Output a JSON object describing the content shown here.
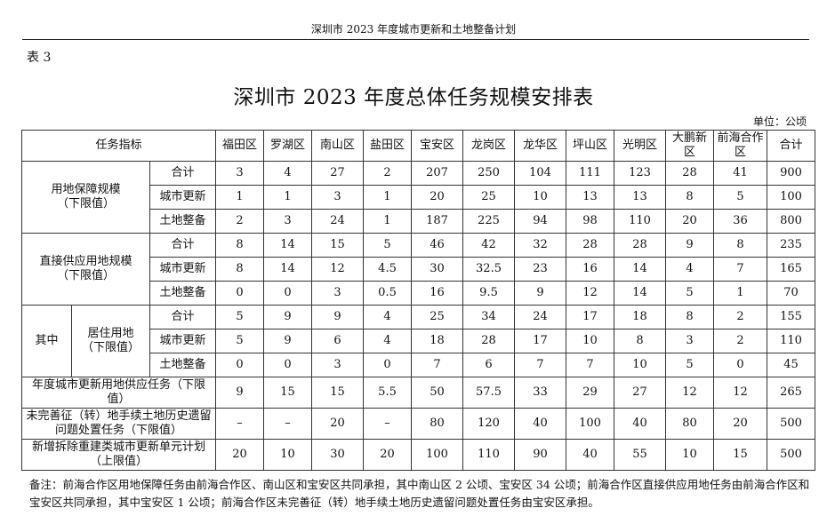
{
  "running_head": "深圳市 2023 年度城市更新和土地整备计划",
  "table_no": "表 3",
  "title": "深圳市 2023 年度总体任务规模安排表",
  "unit": "单位：公顷",
  "header": {
    "indicator": "任务指标",
    "districts": [
      "福田区",
      "罗湖区",
      "南山区",
      "盐田区",
      "宝安区",
      "龙岗区",
      "龙华区",
      "坪山区",
      "光明区",
      "大鹏新区",
      "前海合作区"
    ],
    "total": "合计"
  },
  "groups": {
    "g1": {
      "label": "用地保障规模\n（下限值）",
      "rows": [
        {
          "sub": "合计",
          "values": [
            "3",
            "4",
            "27",
            "2",
            "207",
            "250",
            "104",
            "111",
            "123",
            "28",
            "41"
          ],
          "total": "900"
        },
        {
          "sub": "城市更新",
          "values": [
            "1",
            "1",
            "3",
            "1",
            "20",
            "25",
            "10",
            "13",
            "13",
            "8",
            "5"
          ],
          "total": "100"
        },
        {
          "sub": "土地整备",
          "values": [
            "2",
            "3",
            "24",
            "1",
            "187",
            "225",
            "94",
            "98",
            "110",
            "20",
            "36"
          ],
          "total": "800"
        }
      ]
    },
    "g2": {
      "label": "直接供应用地规模\n（下限值）",
      "rows": [
        {
          "sub": "合计",
          "values": [
            "8",
            "14",
            "15",
            "5",
            "46",
            "42",
            "32",
            "28",
            "28",
            "9",
            "8"
          ],
          "total": "235"
        },
        {
          "sub": "城市更新",
          "values": [
            "8",
            "14",
            "12",
            "4.5",
            "30",
            "32.5",
            "23",
            "16",
            "14",
            "4",
            "7"
          ],
          "total": "165"
        },
        {
          "sub": "土地整备",
          "values": [
            "0",
            "0",
            "3",
            "0.5",
            "16",
            "9.5",
            "9",
            "12",
            "14",
            "5",
            "1"
          ],
          "total": "70"
        }
      ]
    },
    "g3": {
      "outer": "其中",
      "label": "居住用地\n（下限值）",
      "rows": [
        {
          "sub": "合计",
          "values": [
            "5",
            "9",
            "9",
            "4",
            "25",
            "34",
            "24",
            "17",
            "18",
            "8",
            "2"
          ],
          "total": "155"
        },
        {
          "sub": "城市更新",
          "values": [
            "5",
            "9",
            "6",
            "4",
            "18",
            "28",
            "17",
            "10",
            "8",
            "3",
            "2"
          ],
          "total": "110"
        },
        {
          "sub": "土地整备",
          "values": [
            "0",
            "0",
            "3",
            "0",
            "7",
            "6",
            "7",
            "7",
            "10",
            "5",
            "0"
          ],
          "total": "45"
        }
      ]
    }
  },
  "single_rows": {
    "supply": {
      "label": "年度城市更新用地供应任务（下限值）",
      "values": [
        "9",
        "15",
        "15",
        "5.5",
        "50",
        "57.5",
        "33",
        "29",
        "27",
        "12",
        "12"
      ],
      "total": "265"
    },
    "legacy": {
      "label": "未完善征（转）地手续土地历史遗留问题处置任务（下限值）",
      "values": [
        "–",
        "–",
        "20",
        "–",
        "80",
        "120",
        "40",
        "100",
        "40",
        "80",
        "20"
      ],
      "total": "500"
    },
    "newunit": {
      "label": "新增拆除重建类城市更新单元计划（上限值）",
      "values": [
        "20",
        "10",
        "30",
        "20",
        "100",
        "110",
        "90",
        "40",
        "55",
        "10",
        "15"
      ],
      "total": "500"
    }
  },
  "footnote": "备注：前海合作区用地保障任务由前海合作区、南山区和宝安区共同承担，其中南山区 2 公顷、宝安区 34 公顷；前海合作区直接供应用地任务由前海合作区和宝安区共同承担，其中宝安区 1 公顷；前海合作区未完善征（转）地手续土地历史遗留问题处置任务由宝安区承担。"
}
